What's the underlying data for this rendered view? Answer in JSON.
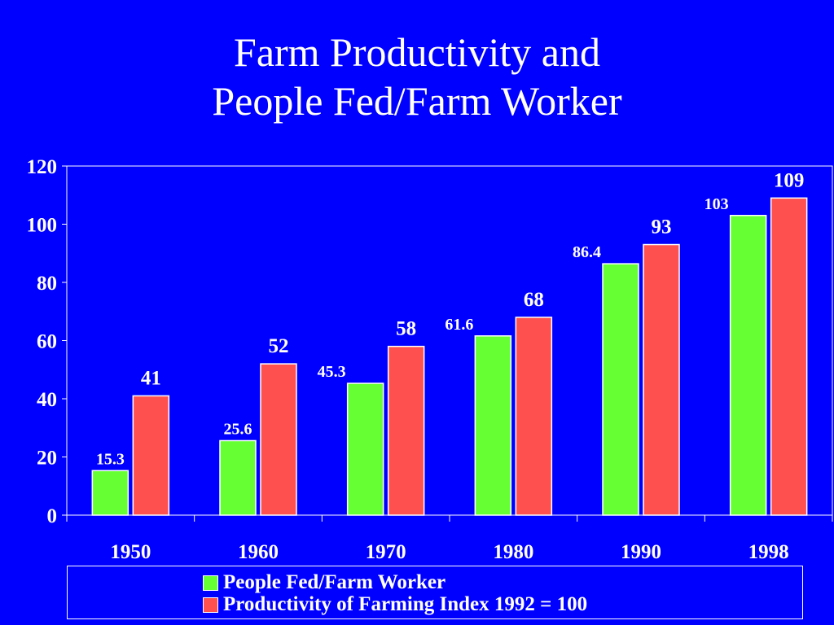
{
  "title_line1": "Farm Productivity and",
  "title_line2": "People Fed/Farm Worker",
  "colors": {
    "background": "#0000ff",
    "people_fed": "#66ff33",
    "productivity": "#ff5050",
    "text": "#ffffff"
  },
  "chart_data": {
    "type": "bar",
    "categories": [
      "1950",
      "1960",
      "1970",
      "1980",
      "1990",
      "1998"
    ],
    "series": [
      {
        "name": "People Fed/Farm Worker",
        "values": [
          15.3,
          25.6,
          45.3,
          61.6,
          86.4,
          103
        ],
        "labels": [
          "15.3",
          "25.6",
          "45.3",
          "61.6",
          "86.4",
          "103"
        ]
      },
      {
        "name": "Productivity of Farming Index 1992 = 100",
        "values": [
          41,
          52,
          58,
          68,
          93,
          109
        ],
        "labels": [
          "41",
          "52",
          "58",
          "68",
          "93",
          "109"
        ]
      }
    ],
    "ylim": [
      0,
      120
    ],
    "yticks": [
      "0",
      "20",
      "40",
      "60",
      "80",
      "100",
      "120"
    ],
    "grid": false,
    "legend_position": "bottom"
  }
}
